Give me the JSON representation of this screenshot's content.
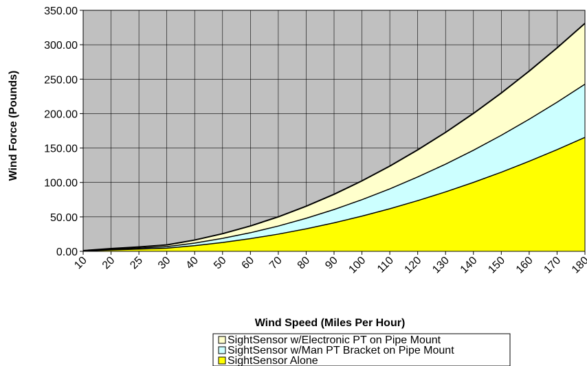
{
  "chart_data": {
    "type": "area",
    "stacked": true,
    "title": "",
    "xlabel": "Wind Speed (Miles Per Hour)",
    "ylabel": "Wind Force (Pounds)",
    "categories": [
      10,
      20,
      25,
      30,
      40,
      50,
      60,
      70,
      80,
      90,
      100,
      110,
      120,
      130,
      140,
      150,
      160,
      170,
      180
    ],
    "ylim": [
      0,
      350
    ],
    "yticks": [
      "0.00",
      "50.00",
      "100.00",
      "150.00",
      "200.00",
      "250.00",
      "300.00",
      "350.00"
    ],
    "grid": true,
    "plot_background": "#c0c0c0",
    "legend_position": "bottom",
    "series": [
      {
        "name": "SightSensor Alone",
        "color": "#ffff00",
        "values": [
          0.5,
          2.0,
          3.2,
          4.6,
          8.2,
          12.8,
          18.4,
          25.0,
          32.7,
          41.4,
          51.1,
          61.8,
          73.6,
          86.3,
          100.1,
          114.9,
          130.8,
          147.6,
          165.5
        ]
      },
      {
        "name": "SightSensor w/Man PT Bracket on Pipe Mount",
        "color": "#ccffff",
        "values": [
          0.2,
          0.9,
          1.5,
          2.2,
          3.8,
          6.0,
          8.6,
          11.7,
          15.3,
          19.3,
          23.9,
          28.9,
          34.4,
          40.3,
          46.7,
          53.6,
          61.0,
          68.9,
          77.2
        ]
      },
      {
        "name": "SightSensor w/Electronic PT on Pipe Mount",
        "color": "#ffffcc",
        "values": [
          0.3,
          1.1,
          1.7,
          2.5,
          4.4,
          6.8,
          9.8,
          13.4,
          17.5,
          22.1,
          27.3,
          33.1,
          39.3,
          46.1,
          53.5,
          61.4,
          69.9,
          78.9,
          88.4
        ]
      }
    ]
  }
}
